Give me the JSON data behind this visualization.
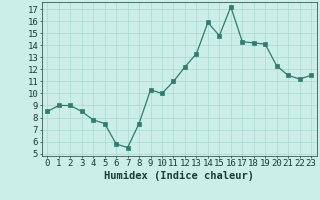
{
  "x": [
    0,
    1,
    2,
    3,
    4,
    5,
    6,
    7,
    8,
    9,
    10,
    11,
    12,
    13,
    14,
    15,
    16,
    17,
    18,
    19,
    20,
    21,
    22,
    23
  ],
  "y": [
    8.5,
    9.0,
    9.0,
    8.5,
    7.8,
    7.5,
    5.8,
    5.5,
    7.5,
    10.3,
    10.0,
    11.0,
    12.2,
    13.3,
    15.9,
    14.8,
    17.2,
    14.3,
    14.2,
    14.1,
    12.3,
    11.5,
    11.2,
    11.5
  ],
  "xlim": [
    -0.5,
    23.5
  ],
  "ylim": [
    4.8,
    17.6
  ],
  "yticks": [
    5,
    6,
    7,
    8,
    9,
    10,
    11,
    12,
    13,
    14,
    15,
    16,
    17
  ],
  "xticks": [
    0,
    1,
    2,
    3,
    4,
    5,
    6,
    7,
    8,
    9,
    10,
    11,
    12,
    13,
    14,
    15,
    16,
    17,
    18,
    19,
    20,
    21,
    22,
    23
  ],
  "xlabel": "Humidex (Indice chaleur)",
  "line_color": "#2e7d6e",
  "marker": "s",
  "marker_size": 2.5,
  "bg_color": "#cceee8",
  "grid_color": "#aad8d0",
  "font_color": "#1a3c34",
  "tick_fontsize": 6.5,
  "xlabel_fontsize": 7.5,
  "linewidth": 0.9
}
